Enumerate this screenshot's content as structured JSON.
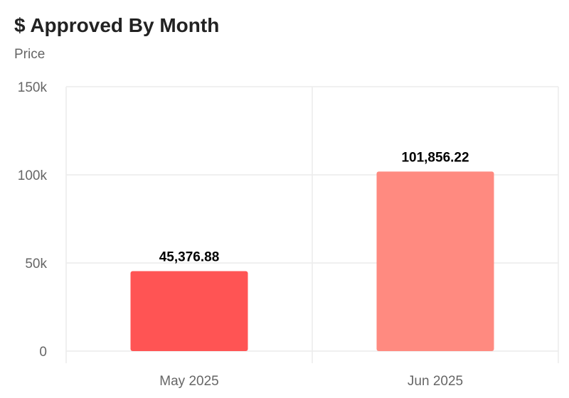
{
  "chart_data": {
    "type": "bar",
    "title": "$ Approved By Month",
    "ylabel": "Price",
    "xlabel": "",
    "categories": [
      "May 2025",
      "Jun 2025"
    ],
    "values": [
      45376.88,
      101856.22
    ],
    "value_labels": [
      "45,376.88",
      "101,856.22"
    ],
    "bar_colors": [
      "#ff5454",
      "#ff8a80"
    ],
    "ylim": [
      0,
      150000
    ],
    "yticks": [
      0,
      50000,
      100000,
      150000
    ],
    "ytick_labels": [
      "0",
      "50k",
      "100k",
      "150k"
    ],
    "grid": true,
    "legend": "none"
  }
}
